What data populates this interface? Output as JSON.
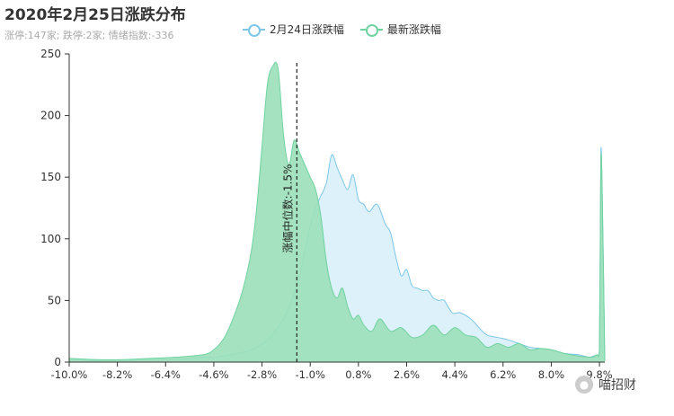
{
  "header": {
    "title": "2020年2月25日涨跌分布",
    "subtitle": "涨停:147家; 跌停:2家; 情绪指数:-336"
  },
  "watermark": {
    "text": "喵招财",
    "icon": "wechat-icon"
  },
  "colors": {
    "series1_line": "#7cc7e8",
    "series1_fill": "#d6eef9",
    "series2_line": "#6fd29f",
    "series2_fill": "#9be0b9"
  },
  "chart_data": {
    "type": "area",
    "title": "2020年2月25日涨跌分布",
    "subtitle": "涨停:147家; 跌停:2家; 情绪指数:-336",
    "xlabel": "",
    "ylabel": "",
    "xlim": [
      -10.0,
      10.0
    ],
    "ylim": [
      0,
      250
    ],
    "x_ticks": [
      "-10.0%",
      "-8.2%",
      "-6.4%",
      "-4.6%",
      "-2.8%",
      "-1.0%",
      "0.8%",
      "2.6%",
      "4.4%",
      "6.2%",
      "8.0%",
      "9.8%"
    ],
    "x_tick_values": [
      -10.0,
      -8.2,
      -6.4,
      -4.6,
      -2.8,
      -1.0,
      0.8,
      2.6,
      4.4,
      6.2,
      8.0,
      9.8
    ],
    "y_ticks": [
      0,
      50,
      100,
      150,
      200,
      250
    ],
    "legend_position": "top",
    "grid": false,
    "series": [
      {
        "name": "2月24日涨跌幅",
        "x": [
          -10.0,
          -9.0,
          -8.0,
          -7.0,
          -6.0,
          -5.0,
          -4.5,
          -4.0,
          -3.5,
          -3.0,
          -2.5,
          -2.0,
          -1.7,
          -1.4,
          -1.2,
          -1.0,
          -0.8,
          -0.6,
          -0.4,
          -0.2,
          0.0,
          0.2,
          0.4,
          0.6,
          0.8,
          1.0,
          1.2,
          1.5,
          1.8,
          2.0,
          2.2,
          2.4,
          2.6,
          2.8,
          3.0,
          3.2,
          3.4,
          3.6,
          3.8,
          4.0,
          4.3,
          4.6,
          5.0,
          5.3,
          5.6,
          6.0,
          6.4,
          6.8,
          7.2,
          7.6,
          8.0,
          8.5,
          9.0,
          9.4,
          9.6,
          9.7,
          9.8,
          9.85,
          9.9,
          10.0
        ],
        "values": [
          2,
          1,
          1,
          2,
          2,
          4,
          4,
          6,
          8,
          12,
          20,
          35,
          50,
          70,
          90,
          110,
          125,
          135,
          145,
          168,
          158,
          148,
          140,
          152,
          132,
          128,
          122,
          128,
          112,
          105,
          85,
          70,
          75,
          62,
          60,
          58,
          58,
          52,
          50,
          50,
          40,
          40,
          35,
          28,
          22,
          20,
          18,
          15,
          12,
          11,
          10,
          7,
          6,
          4,
          5,
          6,
          10,
          165,
          140,
          1
        ]
      },
      {
        "name": "最新涨跌幅",
        "x": [
          -10.0,
          -9.0,
          -8.0,
          -7.0,
          -6.0,
          -5.0,
          -4.6,
          -4.2,
          -3.8,
          -3.5,
          -3.2,
          -3.0,
          -2.8,
          -2.6,
          -2.4,
          -2.2,
          -2.0,
          -1.8,
          -1.6,
          -1.4,
          -1.2,
          -1.0,
          -0.8,
          -0.6,
          -0.4,
          -0.2,
          0.0,
          0.2,
          0.4,
          0.6,
          0.8,
          1.0,
          1.3,
          1.6,
          2.0,
          2.4,
          2.8,
          3.2,
          3.6,
          4.0,
          4.4,
          4.8,
          5.2,
          5.6,
          6.0,
          6.4,
          6.8,
          7.2,
          7.6,
          8.0,
          8.5,
          9.0,
          9.5,
          9.7,
          9.8,
          9.85,
          9.9,
          10.0
        ],
        "values": [
          3,
          2,
          2,
          3,
          4,
          6,
          10,
          20,
          40,
          60,
          90,
          125,
          175,
          225,
          240,
          238,
          185,
          160,
          180,
          170,
          160,
          150,
          140,
          118,
          82,
          60,
          52,
          60,
          45,
          35,
          38,
          30,
          25,
          35,
          25,
          28,
          20,
          22,
          30,
          22,
          28,
          22,
          20,
          12,
          15,
          12,
          15,
          10,
          11,
          10,
          7,
          5,
          4,
          6,
          10,
          158,
          142,
          1
        ]
      }
    ],
    "markline": {
      "x": -1.5,
      "label": "涨幅中位数:-1.5%"
    }
  }
}
